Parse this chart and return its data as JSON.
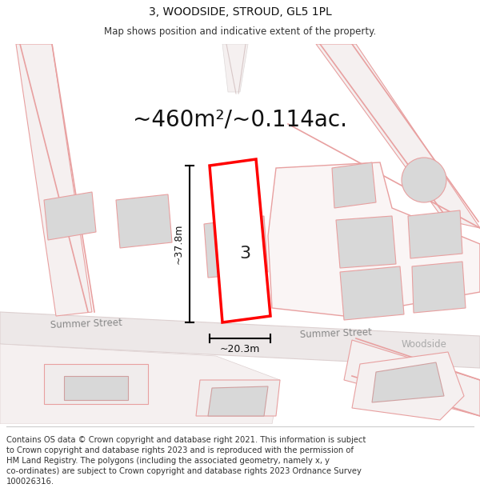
{
  "title": "3, WOODSIDE, STROUD, GL5 1PL",
  "subtitle": "Map shows position and indicative extent of the property.",
  "area_text": "~460m²/~0.114ac.",
  "property_number": "3",
  "dim_height": "~37.8m",
  "dim_width": "~20.3m",
  "footer_lines": [
    "Contains OS data © Crown copyright and database right 2021. This information is subject",
    "to Crown copyright and database rights 2023 and is reproduced with the permission of",
    "HM Land Registry. The polygons (including the associated geometry, namely x, y",
    "co-ordinates) are subject to Crown copyright and database rights 2023 Ordnance Survey",
    "100026316."
  ],
  "bg_color": "#ffffff",
  "highlight_color": "#ff0000",
  "title_fontsize": 10,
  "subtitle_fontsize": 8.5,
  "area_fontsize": 20,
  "footer_fontsize": 7.2,
  "building_fill": "#d8d8d8",
  "building_edge_pink": "#e8a0a0",
  "road_fill": "#ede8e8",
  "road_edge": "#ddd0d0"
}
